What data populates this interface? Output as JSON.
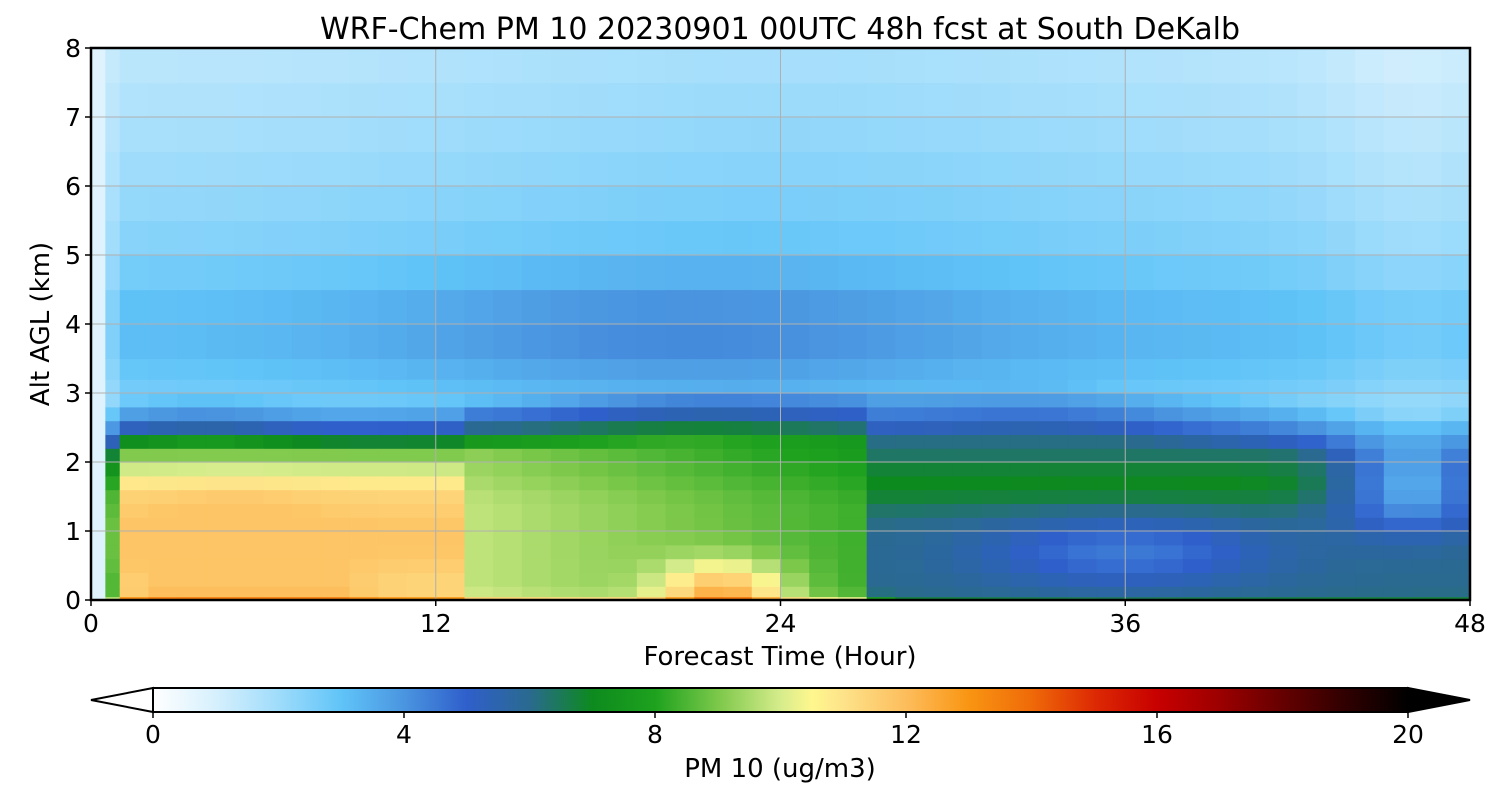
{
  "chart_data": {
    "type": "heatmap",
    "title": "WRF-Chem PM 10  20230901 00UTC 48h fcst at South DeKalb",
    "xlabel": "Forecast Time (Hour)",
    "ylabel": "Alt AGL (km)",
    "xlim": [
      0,
      48
    ],
    "ylim": [
      0,
      8
    ],
    "xticks": [
      "0",
      "12",
      "24",
      "36",
      "48"
    ],
    "yticks": [
      "0",
      "1",
      "2",
      "3",
      "4",
      "5",
      "6",
      "7",
      "8"
    ],
    "grid": true,
    "colorbar": {
      "label": "PM 10  (ug/m3)",
      "range": [
        0,
        20
      ],
      "extend": "both",
      "ticks": [
        "0",
        "4",
        "8",
        "12",
        "16",
        "20"
      ],
      "stops": [
        {
          "value": 0,
          "color": "#ffffff"
        },
        {
          "value": 1,
          "color": "#d6f0fd"
        },
        {
          "value": 2,
          "color": "#9fdcfb"
        },
        {
          "value": 3,
          "color": "#60c4f8"
        },
        {
          "value": 4,
          "color": "#4a95e0"
        },
        {
          "value": 5,
          "color": "#2f5fcb"
        },
        {
          "value": 6,
          "color": "#2a6a8f"
        },
        {
          "value": 7,
          "color": "#0d8a1e"
        },
        {
          "value": 8,
          "color": "#1ea21e"
        },
        {
          "value": 9,
          "color": "#7cc84a"
        },
        {
          "value": 10,
          "color": "#d6ec8c"
        },
        {
          "value": 10.5,
          "color": "#fff78e"
        },
        {
          "value": 11,
          "color": "#fde38a"
        },
        {
          "value": 12,
          "color": "#fdbd5c"
        },
        {
          "value": 13,
          "color": "#f99512"
        },
        {
          "value": 14,
          "color": "#ef6a08"
        },
        {
          "value": 15,
          "color": "#dd2a04"
        },
        {
          "value": 16,
          "color": "#c80000"
        },
        {
          "value": 17,
          "color": "#9c0000"
        },
        {
          "value": 18,
          "color": "#650000"
        },
        {
          "value": 19,
          "color": "#300000"
        },
        {
          "value": 20,
          "color": "#000000"
        }
      ]
    },
    "x": [
      0,
      0.5,
      1,
      2,
      3,
      4,
      5,
      6,
      7,
      8,
      9,
      10,
      11,
      12,
      13,
      14,
      15,
      16,
      17,
      18,
      19,
      20,
      21,
      22,
      23,
      24,
      25,
      26,
      27,
      28,
      29,
      30,
      31,
      32,
      33,
      34,
      35,
      36,
      37,
      38,
      39,
      40,
      41,
      42,
      43,
      44,
      45,
      46,
      47,
      48
    ],
    "y": [
      0,
      0.05,
      0.2,
      0.4,
      0.6,
      0.8,
      1.0,
      1.2,
      1.4,
      1.6,
      1.8,
      2.0,
      2.2,
      2.4,
      2.6,
      2.8,
      3.0,
      3.2,
      3.5,
      4.0,
      4.5,
      5.0,
      5.5,
      6.0,
      6.5,
      7.0,
      7.5,
      8.0
    ]
  }
}
